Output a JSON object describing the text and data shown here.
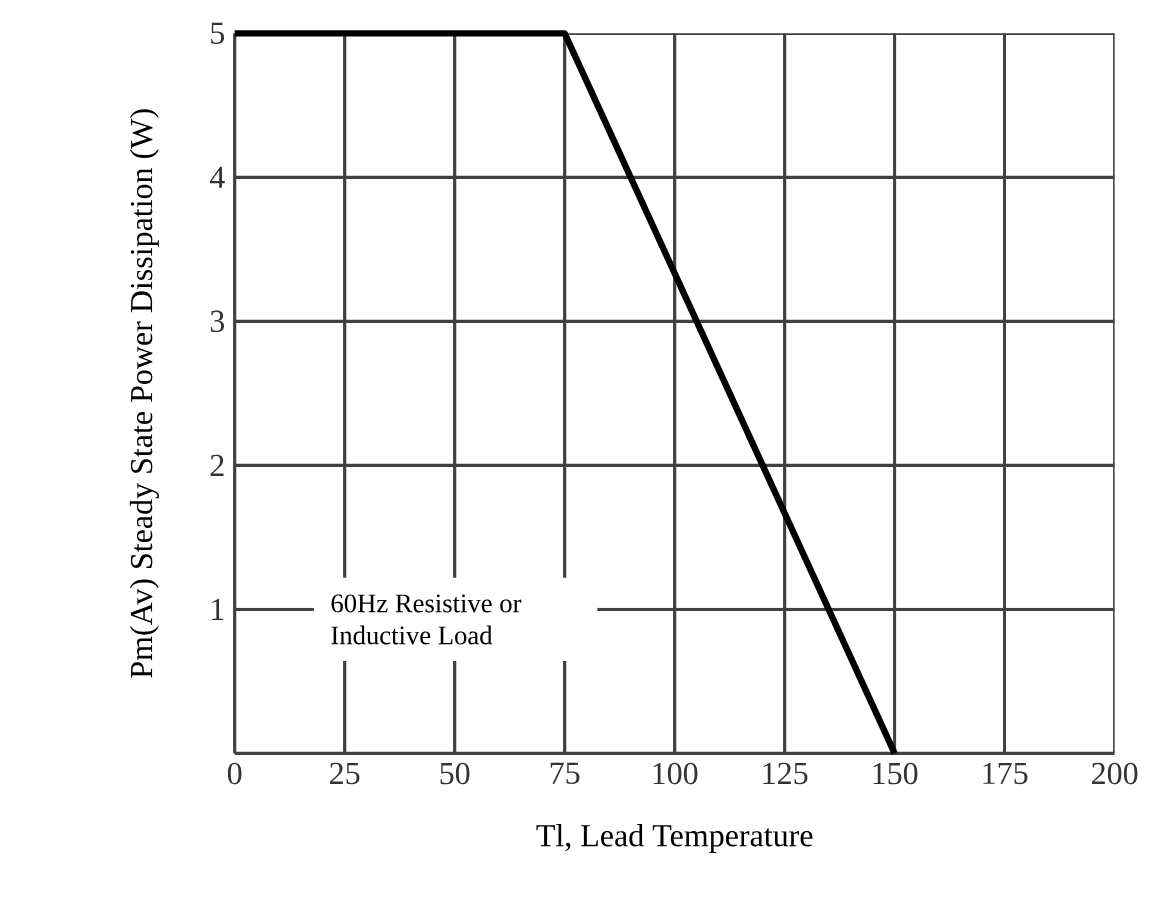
{
  "chart_data": {
    "type": "line",
    "x": [
      0,
      75,
      150
    ],
    "series": [
      {
        "color": "#000000",
        "values": [
          5,
          5,
          0
        ]
      }
    ],
    "xlabel": "Tl, Lead Temperature",
    "ylabel": "Pm(Av)    Steady State Power Dissipation    (W)",
    "annotations": [
      "60Hz Resistive or Inductive Load"
    ],
    "xlim": [
      0,
      200
    ],
    "ylim": [
      0,
      5
    ],
    "xticks": [
      0,
      25,
      50,
      75,
      100,
      125,
      150,
      175,
      200
    ],
    "yticks": [
      {
        "value": 0,
        "label": null
      },
      1,
      2,
      3,
      4,
      5
    ],
    "grid": true,
    "marker": "none",
    "line_style": "solid"
  }
}
